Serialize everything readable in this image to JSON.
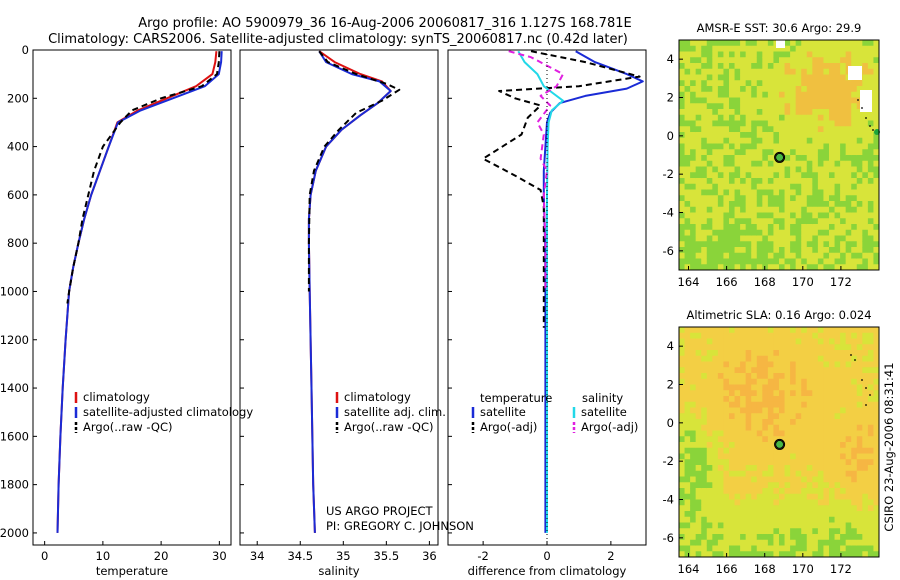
{
  "header": {
    "title_line1": "Argo profile: AO 5900979_36 16-Aug-2006 20060817_316 1.127S 168.781E",
    "title_line2": "Climatology: CARS2006. Satellite-adjusted climatology: synTS_20060817.nc (0.42d later)"
  },
  "credit": {
    "line1": "US ARGO PROJECT",
    "line2": "PI: GREGORY C. JOHNSON",
    "side": "CSIRO 23-Aug-2006 08:31:41"
  },
  "colors": {
    "climatology": "#dd1111",
    "satellite": "#1a2bd6",
    "argo": "#000000",
    "sal_satellite": "#22d8e8",
    "sal_argo": "#e020e0"
  },
  "chart_data": [
    {
      "type": "line",
      "xlabel": "temperature",
      "xlim": [
        -2,
        32
      ],
      "ylim": [
        0,
        2050
      ],
      "y_inverted": true,
      "xticks": [
        0,
        10,
        20,
        30
      ],
      "yticks": [
        0,
        200,
        400,
        600,
        800,
        1000,
        1200,
        1400,
        1600,
        1800,
        2000
      ],
      "legend": [
        "climatology",
        "satellite-adjusted climatology",
        "Argo(..raw -QC)"
      ],
      "legend_position": "lower-right",
      "series": [
        {
          "name": "climatology",
          "style": "solid",
          "x": [
            29.5,
            29.3,
            28.8,
            26.0,
            21.0,
            16.0,
            12.5,
            11.0,
            9.5,
            8.0,
            6.8,
            5.8,
            4.9,
            4.2,
            3.6,
            3.1,
            2.7,
            2.4,
            2.2
          ],
          "y": [
            5,
            50,
            100,
            150,
            200,
            250,
            300,
            400,
            500,
            600,
            700,
            800,
            900,
            1000,
            1200,
            1400,
            1600,
            1800,
            2000
          ]
        },
        {
          "name": "satellite-adjusted climatology",
          "style": "solid",
          "x": [
            30.4,
            30.3,
            29.9,
            27.5,
            22.0,
            16.5,
            12.6,
            11.0,
            9.5,
            8.0,
            6.8,
            5.8,
            4.9,
            4.2,
            3.6,
            3.1,
            2.7,
            2.4,
            2.2
          ],
          "y": [
            5,
            50,
            100,
            150,
            200,
            250,
            300,
            400,
            500,
            600,
            700,
            800,
            900,
            1000,
            1200,
            1400,
            1600,
            1800,
            2000
          ]
        },
        {
          "name": "Argo(..raw -QC)",
          "style": "dashed",
          "x": [
            30.0,
            29.9,
            29.6,
            27.0,
            20.0,
            15.0,
            13.0,
            10.0,
            8.5,
            7.5,
            6.5,
            5.8,
            4.9,
            4.2,
            3.9
          ],
          "y": [
            5,
            50,
            100,
            150,
            200,
            250,
            300,
            400,
            500,
            600,
            700,
            800,
            900,
            1000,
            1050
          ]
        }
      ]
    },
    {
      "type": "line",
      "xlabel": "salinity",
      "xlim": [
        33.8,
        36.1
      ],
      "ylim": [
        0,
        2050
      ],
      "y_inverted": true,
      "xticks": [
        34,
        34.5,
        35,
        35.5,
        36
      ],
      "legend": [
        "climatology",
        "satellite adj. clim.",
        "Argo(..raw -QC)"
      ],
      "legend_position": "lower-right",
      "series": [
        {
          "name": "climatology",
          "style": "solid",
          "x": [
            34.72,
            34.9,
            35.2,
            35.45,
            35.55,
            35.4,
            35.2,
            34.98,
            34.8,
            34.68,
            34.62,
            34.6,
            34.6,
            34.61,
            34.63,
            34.65,
            34.67
          ],
          "y": [
            5,
            50,
            100,
            130,
            170,
            220,
            270,
            330,
            400,
            500,
            600,
            700,
            800,
            1000,
            1400,
            1800,
            2000
          ]
        },
        {
          "name": "satellite adj. clim.",
          "style": "solid",
          "x": [
            34.72,
            34.8,
            35.1,
            35.42,
            35.55,
            35.4,
            35.2,
            34.98,
            34.8,
            34.68,
            34.62,
            34.6,
            34.6,
            34.61,
            34.63,
            34.65,
            34.67
          ],
          "y": [
            5,
            50,
            100,
            130,
            170,
            220,
            270,
            330,
            400,
            500,
            600,
            700,
            800,
            1000,
            1400,
            1800,
            2000
          ]
        },
        {
          "name": "Argo(..raw -QC)",
          "style": "dashed",
          "x": [
            34.72,
            34.82,
            35.15,
            35.5,
            35.65,
            35.45,
            35.15,
            34.95,
            34.78,
            34.66,
            34.61,
            34.6,
            34.6
          ],
          "y": [
            5,
            50,
            100,
            140,
            165,
            210,
            260,
            330,
            400,
            500,
            600,
            800,
            1000
          ]
        }
      ]
    },
    {
      "type": "line",
      "xlabel": "difference from climatology",
      "xlim": [
        -3.1,
        3.1
      ],
      "ylim": [
        0,
        2050
      ],
      "y_inverted": true,
      "xticks": [
        -2,
        0,
        2
      ],
      "legend_titles": [
        "temperature",
        "salinity"
      ],
      "legend": [
        "satellite",
        "Argo(-adj)",
        "satellite",
        "Argo(-adj)"
      ],
      "legend_position": "lower-right",
      "series": [
        {
          "name": "temperature satellite",
          "style": "solid",
          "x": [
            0.9,
            1.5,
            2.5,
            3.0,
            2.5,
            1.2,
            0.4,
            0.1,
            0.0,
            -0.05,
            -0.1,
            -0.1,
            -0.08,
            -0.06,
            -0.05,
            -0.05,
            -0.05,
            -0.05,
            -0.05
          ],
          "y": [
            5,
            50,
            100,
            130,
            160,
            190,
            220,
            260,
            300,
            400,
            500,
            600,
            700,
            800,
            1000,
            1200,
            1500,
            1800,
            2000
          ]
        },
        {
          "name": "temperature Argo(-adj)",
          "style": "dashed",
          "x": [
            -0.5,
            1.2,
            2.9,
            1.0,
            -1.5,
            -1.0,
            -0.2,
            -0.6,
            -0.8,
            -2.0,
            -1.0,
            -0.2,
            -0.1,
            -0.1,
            -0.1,
            -0.1
          ],
          "y": [
            5,
            50,
            110,
            150,
            170,
            200,
            230,
            280,
            350,
            450,
            520,
            580,
            650,
            800,
            1000,
            1150
          ]
        },
        {
          "name": "salinity satellite",
          "style": "solid",
          "x": [
            -0.9,
            -0.7,
            -0.3,
            -0.1,
            0.2,
            0.5,
            0.15,
            0.05,
            0.02,
            0.0,
            0.0,
            0.0,
            0.0
          ],
          "y": [
            5,
            50,
            100,
            150,
            180,
            210,
            250,
            300,
            400,
            600,
            1000,
            1500,
            2000
          ]
        },
        {
          "name": "salinity Argo(-adj)",
          "style": "dashed",
          "x": [
            -1.2,
            -0.5,
            0.5,
            0.3,
            -0.2,
            0.1,
            -0.3,
            -0.1,
            -0.2,
            0.0,
            -0.1,
            -0.05,
            -0.05
          ],
          "y": [
            5,
            30,
            100,
            150,
            190,
            230,
            300,
            350,
            450,
            500,
            600,
            800,
            1000
          ]
        }
      ]
    },
    {
      "type": "heatmap",
      "title": "AMSR-E SST: 30.6 Argo: 29.9",
      "xlim": [
        163.5,
        174
      ],
      "ylim": [
        -7,
        5
      ],
      "xticks": [
        164,
        166,
        168,
        170,
        172
      ],
      "yticks": [
        -6,
        -4,
        -2,
        0,
        2,
        4
      ],
      "argo_position": [
        168.781,
        -1.127
      ],
      "colors": [
        "#2fbf2b",
        "#8ad43a",
        "#d8e43a",
        "#f0c040",
        "#f29a3a"
      ]
    },
    {
      "type": "heatmap",
      "title": "Altimetric SLA: 0.16 Argo: 0.024",
      "xlim": [
        163.5,
        174
      ],
      "ylim": [
        -7,
        5
      ],
      "xticks": [
        164,
        166,
        168,
        170,
        172
      ],
      "yticks": [
        -6,
        -4,
        -2,
        0,
        2,
        4
      ],
      "argo_position": [
        168.781,
        -1.127
      ],
      "colors": [
        "#35c432",
        "#8ad43a",
        "#d8e43a",
        "#f3cf44",
        "#f6b643"
      ]
    }
  ]
}
